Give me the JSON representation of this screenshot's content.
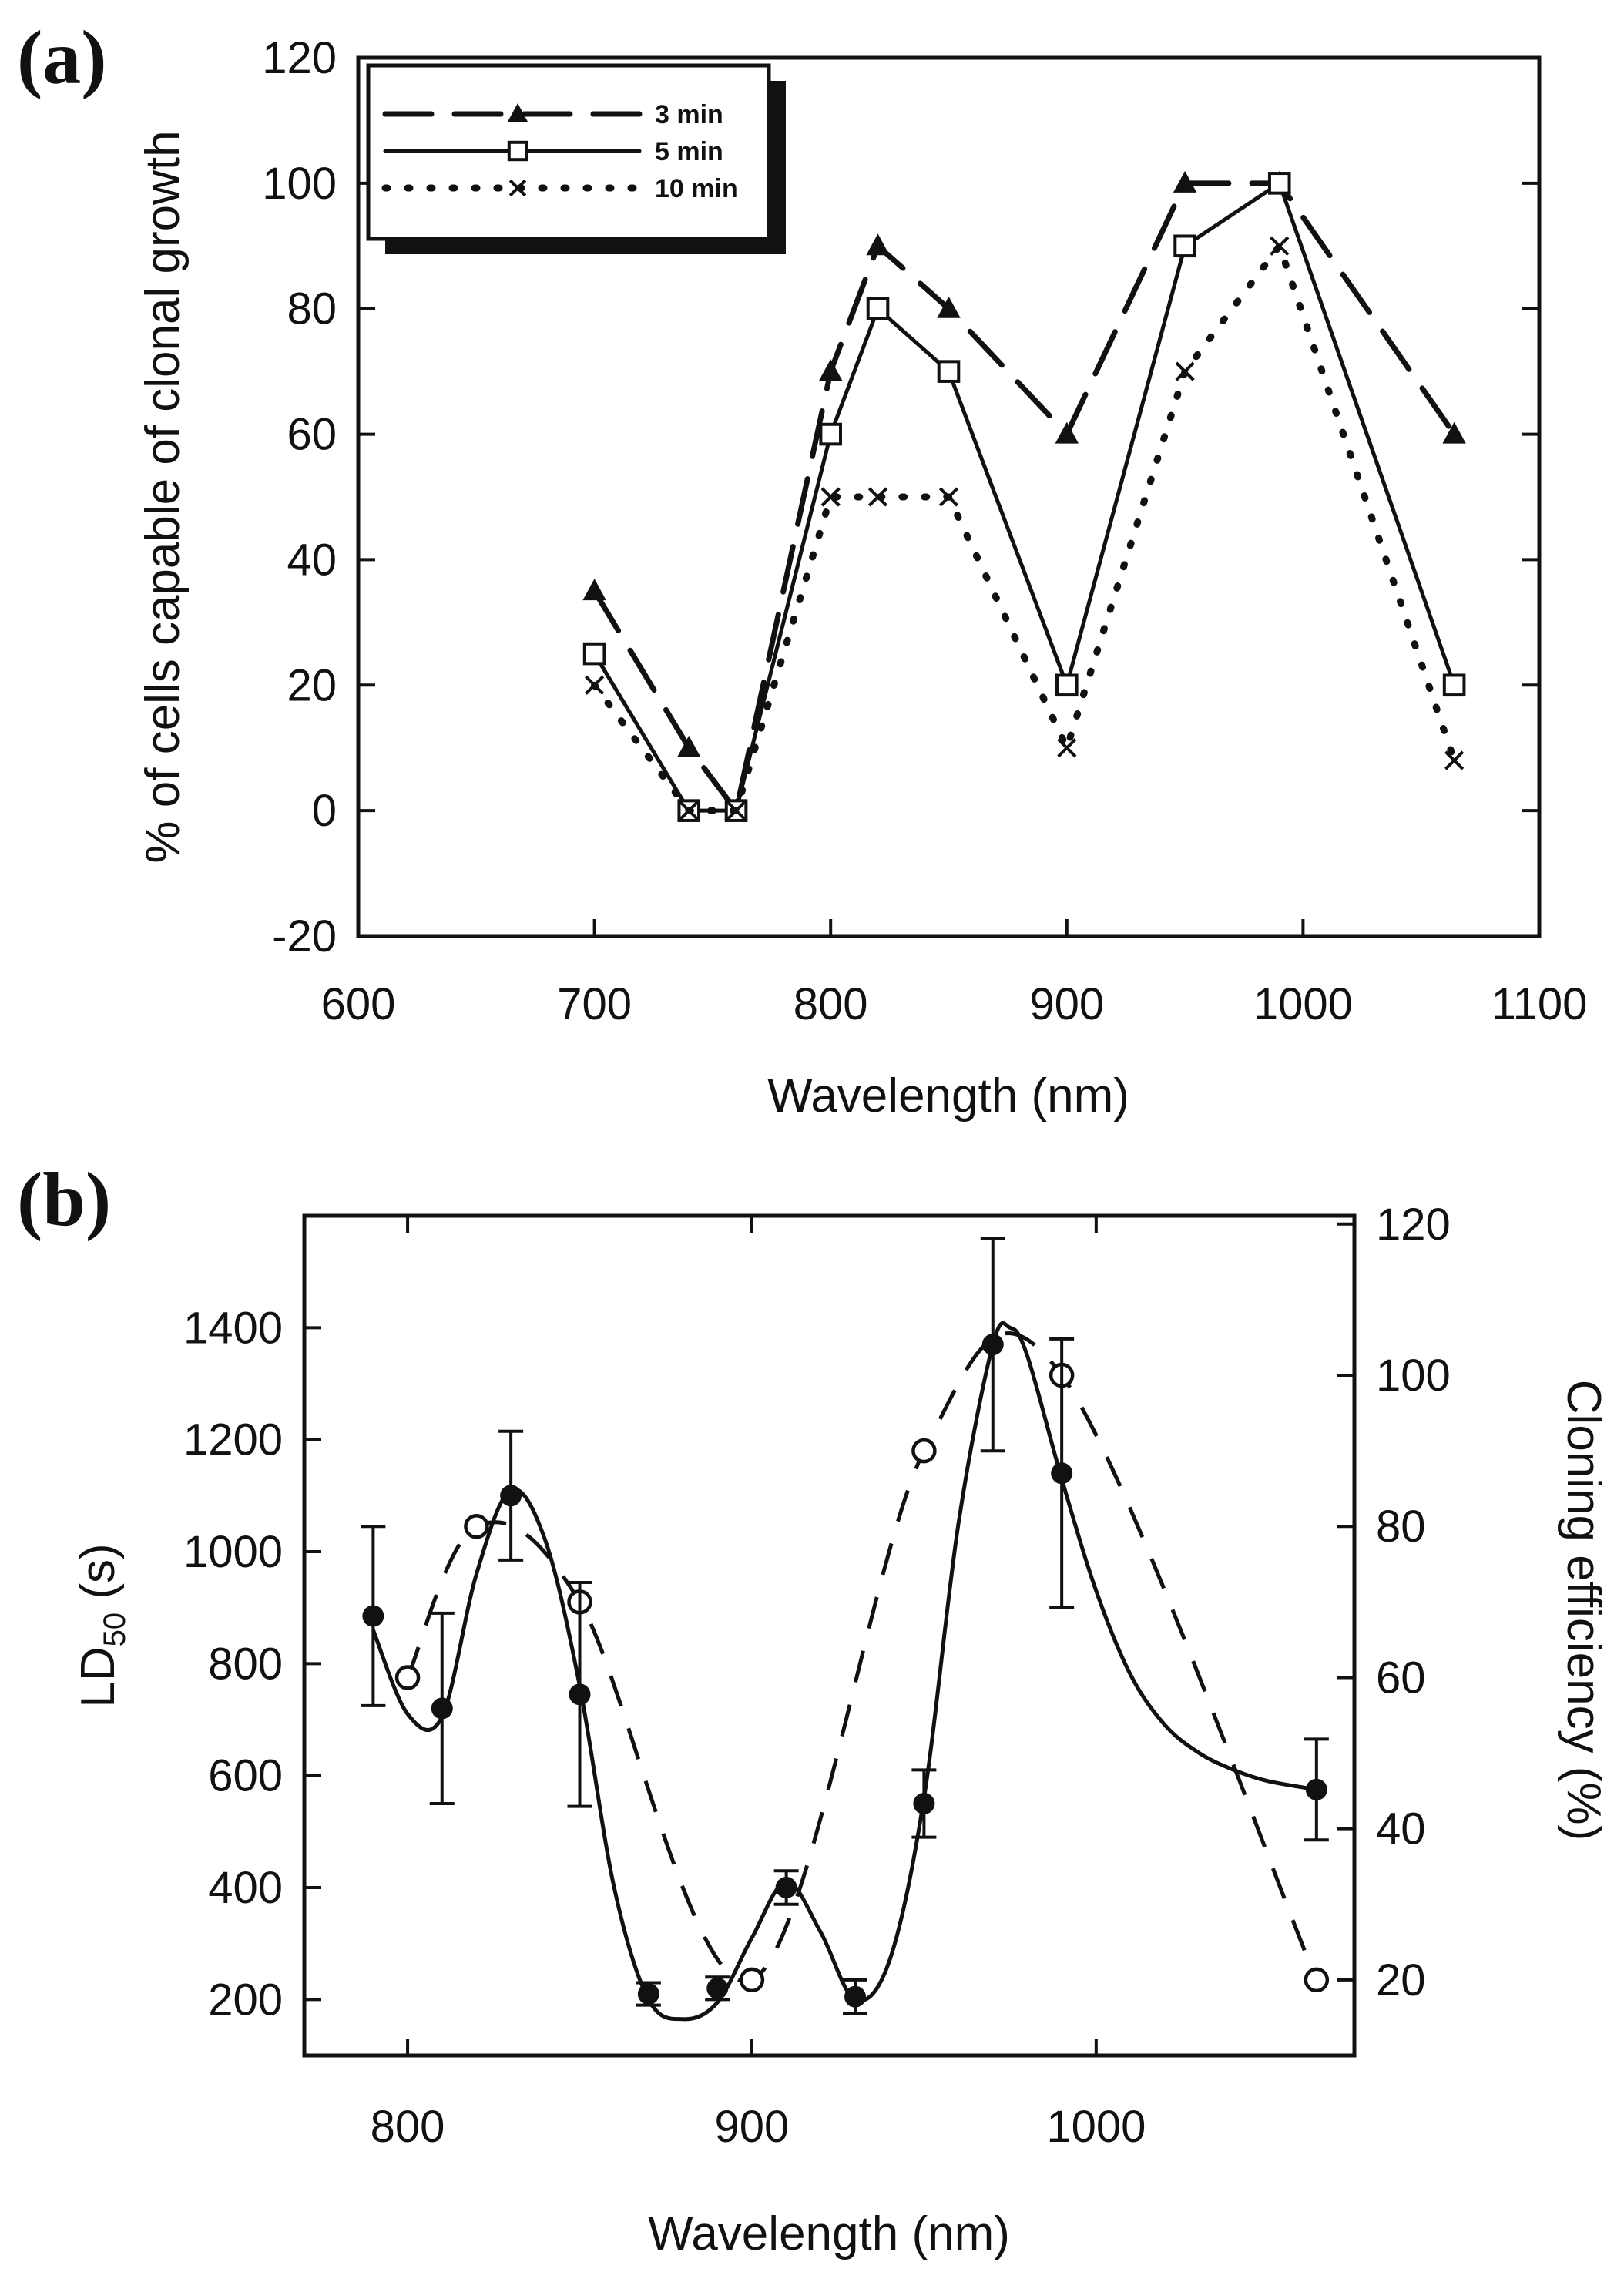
{
  "chart_data": [
    {
      "panel_label": "(a)",
      "type": "line",
      "xlabel": "Wavelength (nm)",
      "ylabel": "% of cells capable of clonal growth",
      "xlim": [
        600,
        1100
      ],
      "ylim": [
        -20,
        120
      ],
      "xticks": [
        600,
        700,
        800,
        900,
        1000,
        1100
      ],
      "yticks": [
        -20,
        0,
        20,
        40,
        60,
        80,
        100,
        120
      ],
      "xtick_labels": [
        "600",
        "700",
        "800",
        "900",
        "1000",
        "1100"
      ],
      "ytick_labels": [
        "-20",
        "0",
        "20",
        "40",
        "60",
        "80",
        "100",
        "120"
      ],
      "legend_position": "top-left",
      "series": [
        {
          "name": "3 min",
          "marker": "filled-triangle",
          "line": "long-dash",
          "x": [
            700,
            740,
            760,
            800,
            820,
            850,
            900,
            950,
            990,
            1064
          ],
          "y": [
            35,
            10,
            0,
            70,
            90,
            80,
            60,
            100,
            100,
            60
          ]
        },
        {
          "name": "5 min",
          "marker": "open-square",
          "line": "solid",
          "x": [
            700,
            740,
            760,
            800,
            820,
            850,
            900,
            950,
            990,
            1064
          ],
          "y": [
            25,
            0,
            0,
            60,
            80,
            70,
            20,
            90,
            100,
            20
          ]
        },
        {
          "name": "10 min",
          "marker": "x",
          "line": "dotted",
          "x": [
            700,
            740,
            760,
            800,
            820,
            850,
            900,
            950,
            990,
            1064
          ],
          "y": [
            20,
            0,
            0,
            50,
            50,
            50,
            10,
            70,
            90,
            8
          ]
        }
      ]
    },
    {
      "panel_label": "(b)",
      "type": "line",
      "xlabel": "Wavelength (nm)",
      "ylabel_left_prefix": "LD",
      "ylabel_left_sub": "50",
      "ylabel_left_suffix": " (s)",
      "ylabel_right": "Cloning efficiency (%)",
      "xlim": [
        770,
        1075
      ],
      "ylim_left": [
        100,
        1600
      ],
      "ylim_right": [
        10,
        121.1
      ],
      "xticks": [
        800,
        900,
        1000
      ],
      "xtick_labels": [
        "800",
        "900",
        "1000"
      ],
      "yticks_left": [
        200,
        400,
        600,
        800,
        1000,
        1200,
        1400
      ],
      "ytick_labels_left": [
        "200",
        "400",
        "600",
        "800",
        "1000",
        "1200",
        "1400"
      ],
      "yticks_right": [
        20,
        40,
        60,
        80,
        100,
        120
      ],
      "ytick_labels_right": [
        "20",
        "40",
        "60",
        "80",
        "100",
        "120"
      ],
      "series": [
        {
          "name": "LD50",
          "axis": "left",
          "marker": "filled-circle",
          "line": "solid smooth fit",
          "x": [
            790,
            810,
            830,
            850,
            870,
            890,
            910,
            930,
            950,
            970,
            990,
            1064
          ],
          "y": [
            885,
            720,
            1100,
            745,
            210,
            220,
            400,
            205,
            550,
            1370,
            1140,
            575
          ],
          "err": [
            160,
            170,
            115,
            200,
            20,
            20,
            30,
            30,
            60,
            190,
            240,
            90
          ],
          "fit_x": [
            790,
            800,
            810,
            820,
            830,
            840,
            850,
            860,
            870,
            880,
            890,
            900,
            910,
            920,
            930,
            940,
            950,
            960,
            970,
            975,
            980,
            990,
            1000,
            1010,
            1020,
            1030,
            1040,
            1050,
            1064
          ],
          "fit_y": [
            860,
            710,
            705,
            960,
            1110,
            1020,
            760,
            400,
            200,
            165,
            195,
            310,
            410,
            320,
            200,
            270,
            560,
            1050,
            1370,
            1400,
            1350,
            1130,
            930,
            780,
            690,
            640,
            610,
            590,
            575
          ]
        },
        {
          "name": "Cloning efficiency",
          "axis": "right",
          "marker": "open-circle",
          "line": "dashed",
          "x": [
            800,
            820,
            850,
            900,
            950,
            990,
            1064
          ],
          "y": [
            60,
            80,
            70,
            20,
            90,
            100,
            20
          ]
        }
      ]
    }
  ]
}
